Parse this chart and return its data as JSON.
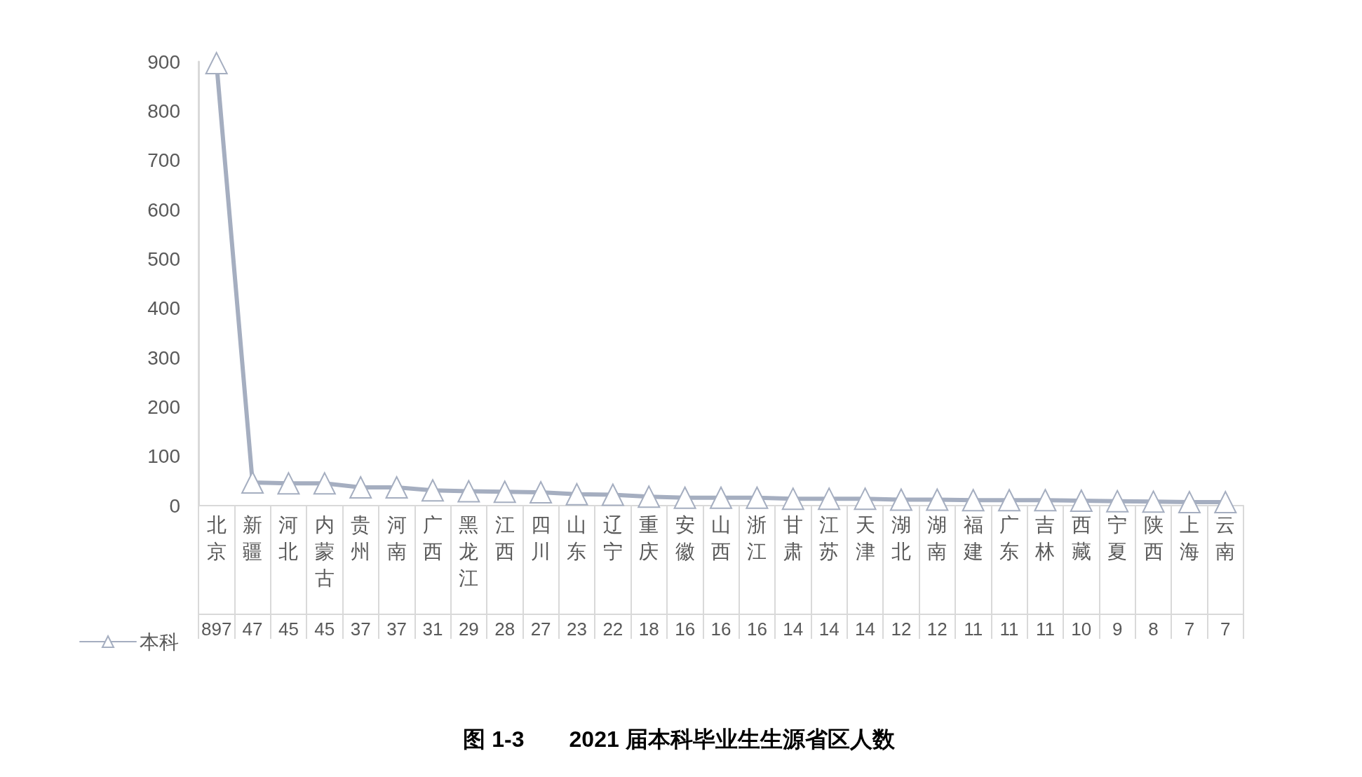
{
  "chart_data": {
    "type": "line",
    "title": "图 1-3　　2021 届本科毕业生生源省区人数",
    "categories": [
      "北京",
      "新疆",
      "河北",
      "内蒙古",
      "贵州",
      "河南",
      "广西",
      "黑龙江",
      "江西",
      "四川",
      "山东",
      "辽宁",
      "重庆",
      "安徽",
      "山西",
      "浙江",
      "甘肃",
      "江苏",
      "天津",
      "湖北",
      "湖南",
      "福建",
      "广东",
      "吉林",
      "西藏",
      "宁夏",
      "陕西",
      "上海",
      "云南"
    ],
    "series": [
      {
        "name": "本科",
        "color": "#a5aec0",
        "values": [
          897,
          47,
          45,
          45,
          37,
          37,
          31,
          29,
          28,
          27,
          23,
          22,
          18,
          16,
          16,
          16,
          14,
          14,
          14,
          12,
          12,
          11,
          11,
          11,
          10,
          9,
          8,
          7,
          7
        ]
      }
    ],
    "ylim": [
      0,
      900
    ],
    "yticks": [
      0,
      100,
      200,
      300,
      400,
      500,
      600,
      700,
      800,
      900
    ],
    "grid": false,
    "legend": "bottom left",
    "marker": "triangle",
    "line_style": "solid",
    "data_labels": true
  }
}
